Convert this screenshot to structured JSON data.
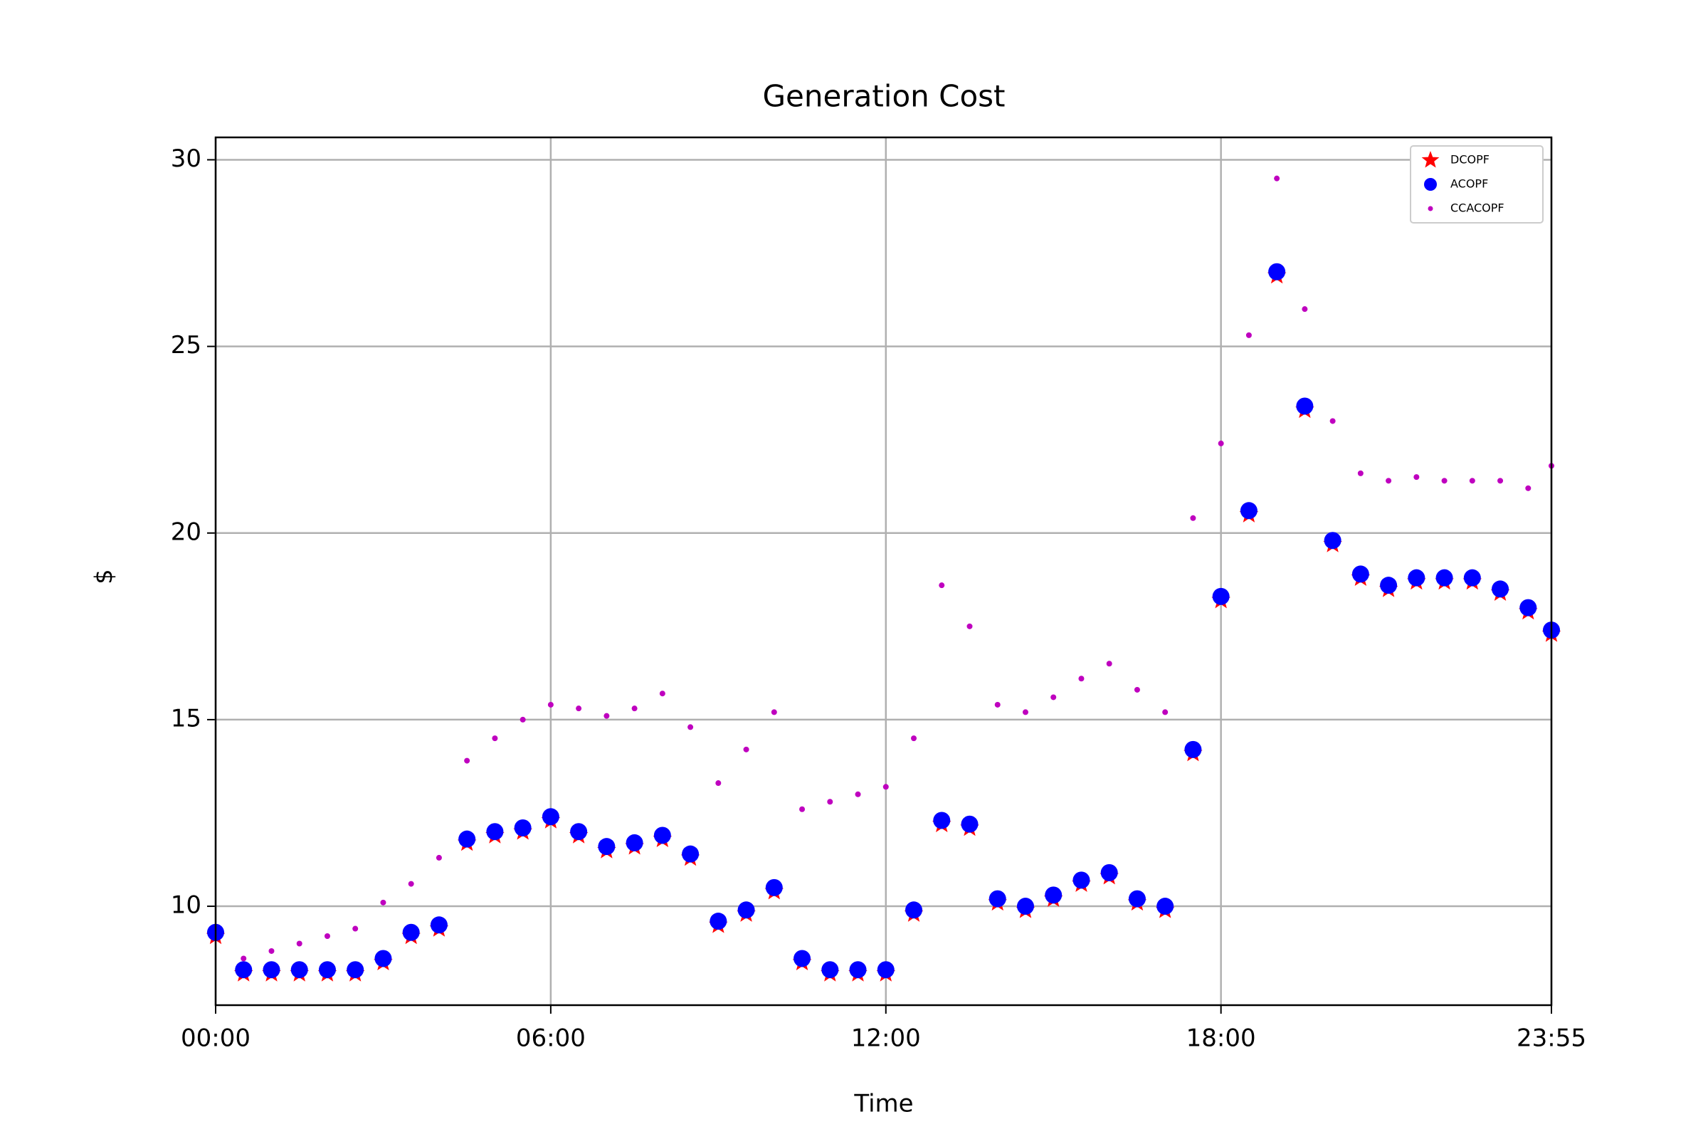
{
  "chart_data": {
    "type": "scatter",
    "title": "Generation Cost",
    "x_label": "Time",
    "y_label": "$",
    "x": [
      "00:00",
      "00:30",
      "01:00",
      "01:30",
      "02:00",
      "02:30",
      "03:00",
      "03:30",
      "04:00",
      "04:30",
      "05:00",
      "05:30",
      "06:00",
      "06:30",
      "07:00",
      "07:30",
      "08:00",
      "08:30",
      "09:00",
      "09:30",
      "10:00",
      "10:30",
      "11:00",
      "11:30",
      "12:00",
      "12:30",
      "13:00",
      "13:30",
      "14:00",
      "14:30",
      "15:00",
      "15:30",
      "16:00",
      "16:30",
      "17:00",
      "17:30",
      "18:00",
      "18:30",
      "19:00",
      "19:30",
      "20:00",
      "20:30",
      "21:00",
      "21:30",
      "22:00",
      "22:30",
      "23:00",
      "23:30",
      "23:55"
    ],
    "series": [
      {
        "name": "DCOPF",
        "color": "#ff0000",
        "marker": "star",
        "values": [
          9.2,
          8.2,
          8.2,
          8.2,
          8.2,
          8.2,
          8.5,
          9.2,
          9.4,
          11.7,
          11.9,
          12.0,
          12.3,
          11.9,
          11.5,
          11.6,
          11.8,
          11.3,
          9.5,
          9.8,
          10.4,
          8.5,
          8.2,
          8.2,
          8.2,
          9.8,
          12.2,
          12.1,
          10.1,
          9.9,
          10.2,
          10.6,
          10.8,
          10.1,
          9.9,
          14.1,
          18.2,
          20.5,
          26.9,
          23.3,
          19.7,
          18.8,
          18.5,
          18.7,
          18.7,
          18.7,
          18.4,
          17.9,
          17.3
        ]
      },
      {
        "name": "ACOPF",
        "color": "#0000ff",
        "marker": "circle",
        "values": [
          9.3,
          8.3,
          8.3,
          8.3,
          8.3,
          8.3,
          8.6,
          9.3,
          9.5,
          11.8,
          12.0,
          12.1,
          12.4,
          12.0,
          11.6,
          11.7,
          11.9,
          11.4,
          9.6,
          9.9,
          10.5,
          8.6,
          8.3,
          8.3,
          8.3,
          9.9,
          12.3,
          12.2,
          10.2,
          10.0,
          10.3,
          10.7,
          10.9,
          10.2,
          10.0,
          14.2,
          18.3,
          20.6,
          27.0,
          23.4,
          19.8,
          18.9,
          18.6,
          18.8,
          18.8,
          18.8,
          18.5,
          18.0,
          17.4
        ]
      },
      {
        "name": "CCACOPF",
        "color": "#bf00bf",
        "marker": "dot",
        "values": [
          null,
          8.6,
          8.8,
          9.0,
          9.2,
          9.4,
          10.1,
          10.6,
          11.3,
          13.9,
          14.5,
          15.0,
          15.4,
          15.3,
          15.1,
          15.3,
          15.7,
          14.8,
          13.3,
          14.2,
          15.2,
          12.6,
          12.8,
          13.0,
          13.2,
          14.5,
          18.6,
          17.5,
          15.4,
          15.2,
          15.6,
          16.1,
          16.5,
          15.8,
          15.2,
          20.4,
          22.4,
          25.3,
          29.5,
          26.0,
          23.0,
          21.6,
          21.4,
          21.5,
          21.4,
          21.4,
          21.4,
          21.2,
          21.8
        ]
      }
    ],
    "xlim": [
      "00:00",
      "23:55"
    ],
    "xticks": [
      "00:00",
      "06:00",
      "12:00",
      "18:00",
      "23:55"
    ],
    "ylim": [
      7.35,
      30.6
    ],
    "yticks": [
      10,
      15,
      20,
      25,
      30
    ],
    "grid": true,
    "legend": "upper right"
  }
}
